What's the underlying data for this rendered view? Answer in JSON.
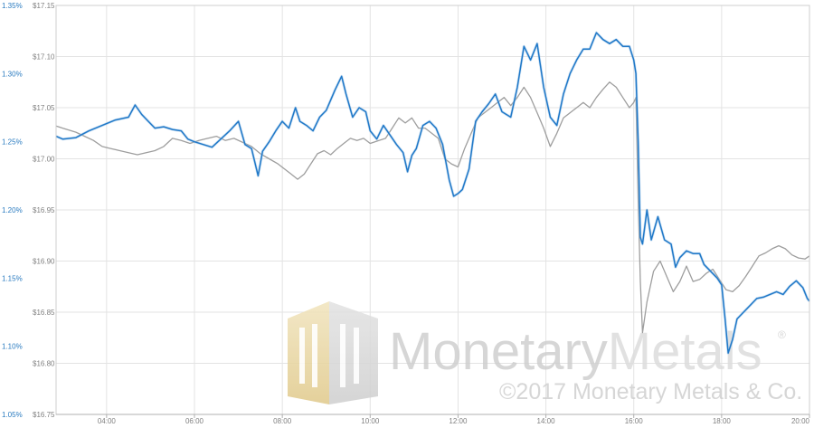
{
  "chart_data": {
    "type": "line",
    "title": "",
    "xlabel": "",
    "ylabel_left": "",
    "ylabel_right": "",
    "grid": true,
    "x_range_hours": [
      2.85,
      20.0
    ],
    "x_tick_labels": [
      {
        "h": 4,
        "label": "04:00"
      },
      {
        "h": 6,
        "label": "06:00"
      },
      {
        "h": 8,
        "label": "08:00"
      },
      {
        "h": 10,
        "label": "10:00"
      },
      {
        "h": 12,
        "label": "12:00"
      },
      {
        "h": 14,
        "label": "14:00"
      },
      {
        "h": 16,
        "label": "16:00"
      },
      {
        "h": 18,
        "label": "18:00"
      },
      {
        "h": 20,
        "label": "20:00"
      }
    ],
    "y_axis_blue": {
      "range": [
        1.05,
        1.35
      ],
      "ticks": [
        {
          "v": 1.35,
          "label": "1.35%"
        },
        {
          "v": 1.3,
          "label": "1.30%"
        },
        {
          "v": 1.25,
          "label": "1.25%"
        },
        {
          "v": 1.2,
          "label": "1.20%"
        },
        {
          "v": 1.15,
          "label": "1.15%"
        },
        {
          "v": 1.1,
          "label": "1.10%"
        },
        {
          "v": 1.05,
          "label": "1.05%"
        }
      ]
    },
    "y_axis_grey": {
      "range": [
        16.75,
        17.15
      ],
      "ticks": [
        {
          "v": 17.15,
          "label": "$17.15"
        },
        {
          "v": 17.1,
          "label": "$17.10"
        },
        {
          "v": 17.05,
          "label": "$17.05"
        },
        {
          "v": 17.0,
          "label": "$17.00"
        },
        {
          "v": 16.95,
          "label": "$16.95"
        },
        {
          "v": 16.9,
          "label": "$16.90"
        },
        {
          "v": 16.85,
          "label": "$16.85"
        },
        {
          "v": 16.8,
          "label": "$16.80"
        },
        {
          "v": 16.75,
          "label": "$16.75"
        }
      ]
    },
    "series": [
      {
        "axis": "blue",
        "color": "#1f78c8",
        "points": [
          [
            2.85,
            1.254
          ],
          [
            3.0,
            1.252
          ],
          [
            3.3,
            1.253
          ],
          [
            3.6,
            1.258
          ],
          [
            3.9,
            1.262
          ],
          [
            4.2,
            1.266
          ],
          [
            4.5,
            1.268
          ],
          [
            4.65,
            1.277
          ],
          [
            4.8,
            1.27
          ],
          [
            4.95,
            1.265
          ],
          [
            5.1,
            1.26
          ],
          [
            5.3,
            1.261
          ],
          [
            5.5,
            1.259
          ],
          [
            5.7,
            1.258
          ],
          [
            5.85,
            1.252
          ],
          [
            6.0,
            1.25
          ],
          [
            6.2,
            1.248
          ],
          [
            6.4,
            1.246
          ],
          [
            6.6,
            1.252
          ],
          [
            6.8,
            1.258
          ],
          [
            7.0,
            1.265
          ],
          [
            7.15,
            1.248
          ],
          [
            7.3,
            1.245
          ],
          [
            7.45,
            1.225
          ],
          [
            7.55,
            1.243
          ],
          [
            7.7,
            1.25
          ],
          [
            7.85,
            1.258
          ],
          [
            8.0,
            1.265
          ],
          [
            8.15,
            1.26
          ],
          [
            8.3,
            1.275
          ],
          [
            8.4,
            1.265
          ],
          [
            8.55,
            1.262
          ],
          [
            8.7,
            1.258
          ],
          [
            8.85,
            1.268
          ],
          [
            9.0,
            1.273
          ],
          [
            9.2,
            1.288
          ],
          [
            9.35,
            1.298
          ],
          [
            9.45,
            1.285
          ],
          [
            9.6,
            1.268
          ],
          [
            9.75,
            1.275
          ],
          [
            9.9,
            1.272
          ],
          [
            10.0,
            1.258
          ],
          [
            10.15,
            1.252
          ],
          [
            10.3,
            1.262
          ],
          [
            10.45,
            1.255
          ],
          [
            10.6,
            1.248
          ],
          [
            10.75,
            1.242
          ],
          [
            10.85,
            1.228
          ],
          [
            10.95,
            1.24
          ],
          [
            11.05,
            1.245
          ],
          [
            11.2,
            1.262
          ],
          [
            11.35,
            1.265
          ],
          [
            11.5,
            1.26
          ],
          [
            11.65,
            1.248
          ],
          [
            11.8,
            1.222
          ],
          [
            11.9,
            1.21
          ],
          [
            12.0,
            1.212
          ],
          [
            12.1,
            1.215
          ],
          [
            12.25,
            1.23
          ],
          [
            12.4,
            1.265
          ],
          [
            12.55,
            1.272
          ],
          [
            12.7,
            1.278
          ],
          [
            12.85,
            1.285
          ],
          [
            13.0,
            1.272
          ],
          [
            13.2,
            1.268
          ],
          [
            13.35,
            1.29
          ],
          [
            13.5,
            1.32
          ],
          [
            13.65,
            1.31
          ],
          [
            13.8,
            1.322
          ],
          [
            13.95,
            1.29
          ],
          [
            14.1,
            1.268
          ],
          [
            14.25,
            1.262
          ],
          [
            14.4,
            1.285
          ],
          [
            14.55,
            1.3
          ],
          [
            14.7,
            1.31
          ],
          [
            14.85,
            1.318
          ],
          [
            15.0,
            1.318
          ],
          [
            15.15,
            1.33
          ],
          [
            15.3,
            1.325
          ],
          [
            15.45,
            1.322
          ],
          [
            15.6,
            1.325
          ],
          [
            15.75,
            1.32
          ],
          [
            15.9,
            1.32
          ],
          [
            16.0,
            1.31
          ],
          [
            16.05,
            1.3
          ],
          [
            16.1,
            1.25
          ],
          [
            16.15,
            1.18
          ],
          [
            16.2,
            1.175
          ],
          [
            16.3,
            1.2
          ],
          [
            16.4,
            1.178
          ],
          [
            16.55,
            1.195
          ],
          [
            16.7,
            1.178
          ],
          [
            16.85,
            1.175
          ],
          [
            16.95,
            1.158
          ],
          [
            17.05,
            1.165
          ],
          [
            17.2,
            1.17
          ],
          [
            17.35,
            1.168
          ],
          [
            17.5,
            1.168
          ],
          [
            17.6,
            1.16
          ],
          [
            17.75,
            1.155
          ],
          [
            17.9,
            1.15
          ],
          [
            18.0,
            1.145
          ],
          [
            18.08,
            1.12
          ],
          [
            18.15,
            1.095
          ],
          [
            18.25,
            1.105
          ],
          [
            18.35,
            1.12
          ],
          [
            18.5,
            1.125
          ],
          [
            18.65,
            1.13
          ],
          [
            18.8,
            1.135
          ],
          [
            18.95,
            1.136
          ],
          [
            19.1,
            1.138
          ],
          [
            19.25,
            1.14
          ],
          [
            19.4,
            1.138
          ],
          [
            19.55,
            1.144
          ],
          [
            19.7,
            1.148
          ],
          [
            19.85,
            1.143
          ],
          [
            19.95,
            1.135
          ],
          [
            20.0,
            1.133
          ]
        ]
      },
      {
        "axis": "grey",
        "color": "#9e9e9e",
        "points": [
          [
            2.85,
            17.032
          ],
          [
            3.0,
            17.03
          ],
          [
            3.15,
            17.028
          ],
          [
            3.3,
            17.026
          ],
          [
            3.5,
            17.022
          ],
          [
            3.7,
            17.018
          ],
          [
            3.9,
            17.012
          ],
          [
            4.1,
            17.01
          ],
          [
            4.3,
            17.008
          ],
          [
            4.5,
            17.006
          ],
          [
            4.7,
            17.004
          ],
          [
            4.9,
            17.006
          ],
          [
            5.1,
            17.008
          ],
          [
            5.3,
            17.012
          ],
          [
            5.5,
            17.02
          ],
          [
            5.7,
            17.018
          ],
          [
            5.9,
            17.015
          ],
          [
            6.1,
            17.018
          ],
          [
            6.3,
            17.02
          ],
          [
            6.5,
            17.022
          ],
          [
            6.7,
            17.018
          ],
          [
            6.9,
            17.02
          ],
          [
            7.1,
            17.016
          ],
          [
            7.3,
            17.012
          ],
          [
            7.5,
            17.005
          ],
          [
            7.7,
            17.0
          ],
          [
            7.9,
            16.995
          ],
          [
            8.05,
            16.99
          ],
          [
            8.2,
            16.985
          ],
          [
            8.35,
            16.98
          ],
          [
            8.5,
            16.985
          ],
          [
            8.65,
            16.995
          ],
          [
            8.8,
            17.005
          ],
          [
            8.95,
            17.008
          ],
          [
            9.1,
            17.004
          ],
          [
            9.25,
            17.01
          ],
          [
            9.4,
            17.015
          ],
          [
            9.55,
            17.02
          ],
          [
            9.7,
            17.018
          ],
          [
            9.85,
            17.02
          ],
          [
            10.0,
            17.015
          ],
          [
            10.2,
            17.018
          ],
          [
            10.35,
            17.02
          ],
          [
            10.5,
            17.03
          ],
          [
            10.65,
            17.04
          ],
          [
            10.8,
            17.035
          ],
          [
            10.95,
            17.04
          ],
          [
            11.1,
            17.03
          ],
          [
            11.25,
            17.03
          ],
          [
            11.4,
            17.025
          ],
          [
            11.55,
            17.02
          ],
          [
            11.7,
            17.0
          ],
          [
            11.85,
            16.995
          ],
          [
            12.0,
            16.992
          ],
          [
            12.15,
            17.01
          ],
          [
            12.3,
            17.025
          ],
          [
            12.45,
            17.04
          ],
          [
            12.6,
            17.045
          ],
          [
            12.75,
            17.05
          ],
          [
            12.9,
            17.055
          ],
          [
            13.05,
            17.06
          ],
          [
            13.2,
            17.052
          ],
          [
            13.35,
            17.06
          ],
          [
            13.5,
            17.07
          ],
          [
            13.65,
            17.06
          ],
          [
            13.8,
            17.045
          ],
          [
            13.95,
            17.03
          ],
          [
            14.1,
            17.012
          ],
          [
            14.25,
            17.025
          ],
          [
            14.4,
            17.04
          ],
          [
            14.55,
            17.045
          ],
          [
            14.7,
            17.05
          ],
          [
            14.85,
            17.055
          ],
          [
            15.0,
            17.05
          ],
          [
            15.15,
            17.06
          ],
          [
            15.3,
            17.068
          ],
          [
            15.45,
            17.075
          ],
          [
            15.6,
            17.07
          ],
          [
            15.75,
            17.06
          ],
          [
            15.9,
            17.05
          ],
          [
            16.0,
            17.055
          ],
          [
            16.05,
            17.06
          ],
          [
            16.1,
            16.96
          ],
          [
            16.15,
            16.88
          ],
          [
            16.2,
            16.83
          ],
          [
            16.3,
            16.86
          ],
          [
            16.45,
            16.89
          ],
          [
            16.6,
            16.9
          ],
          [
            16.75,
            16.885
          ],
          [
            16.9,
            16.87
          ],
          [
            17.05,
            16.88
          ],
          [
            17.2,
            16.895
          ],
          [
            17.35,
            16.88
          ],
          [
            17.5,
            16.882
          ],
          [
            17.65,
            16.888
          ],
          [
            17.8,
            16.892
          ],
          [
            17.95,
            16.882
          ],
          [
            18.1,
            16.872
          ],
          [
            18.25,
            16.87
          ],
          [
            18.4,
            16.876
          ],
          [
            18.55,
            16.885
          ],
          [
            18.7,
            16.895
          ],
          [
            18.85,
            16.905
          ],
          [
            19.0,
            16.908
          ],
          [
            19.15,
            16.912
          ],
          [
            19.3,
            16.915
          ],
          [
            19.45,
            16.912
          ],
          [
            19.6,
            16.906
          ],
          [
            19.75,
            16.903
          ],
          [
            19.9,
            16.902
          ],
          [
            20.0,
            16.905
          ]
        ]
      }
    ]
  },
  "watermark": {
    "brand_part1": "Monetary",
    "brand_part2": "Metals",
    "registered_mark": "®",
    "copyright": "©2017 Monetary Metals & Co."
  }
}
